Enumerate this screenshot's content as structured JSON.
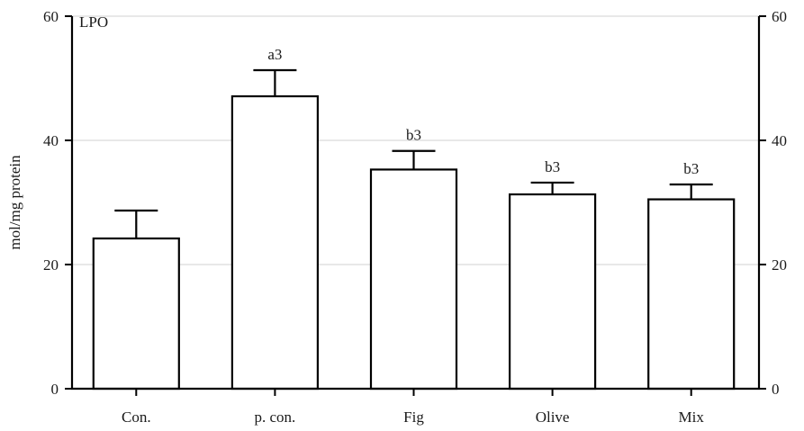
{
  "chart_data": {
    "type": "bar",
    "title": "LPO",
    "xlabel": "",
    "ylabel": "mol/mg protein",
    "ylim": [
      0,
      60
    ],
    "yticks": [
      0,
      20,
      40,
      60
    ],
    "secondary_yaxis": {
      "ylim": [
        0,
        60
      ],
      "yticks": [
        0,
        20,
        40,
        60
      ]
    },
    "grid": true,
    "legend": null,
    "categories": [
      "Con.",
      "p. con.",
      "Fig",
      "Olive",
      "Mix"
    ],
    "values": [
      24.2,
      47.1,
      35.3,
      31.3,
      30.5
    ],
    "error_upper": [
      4.5,
      4.2,
      3.0,
      1.9,
      2.4
    ],
    "annotations": [
      "",
      "a3",
      "b3",
      "b3",
      "b3"
    ],
    "colors": {
      "bar_fill": "#ffffff",
      "bar_stroke": "#000000",
      "grid": "#d9d9d9"
    }
  }
}
